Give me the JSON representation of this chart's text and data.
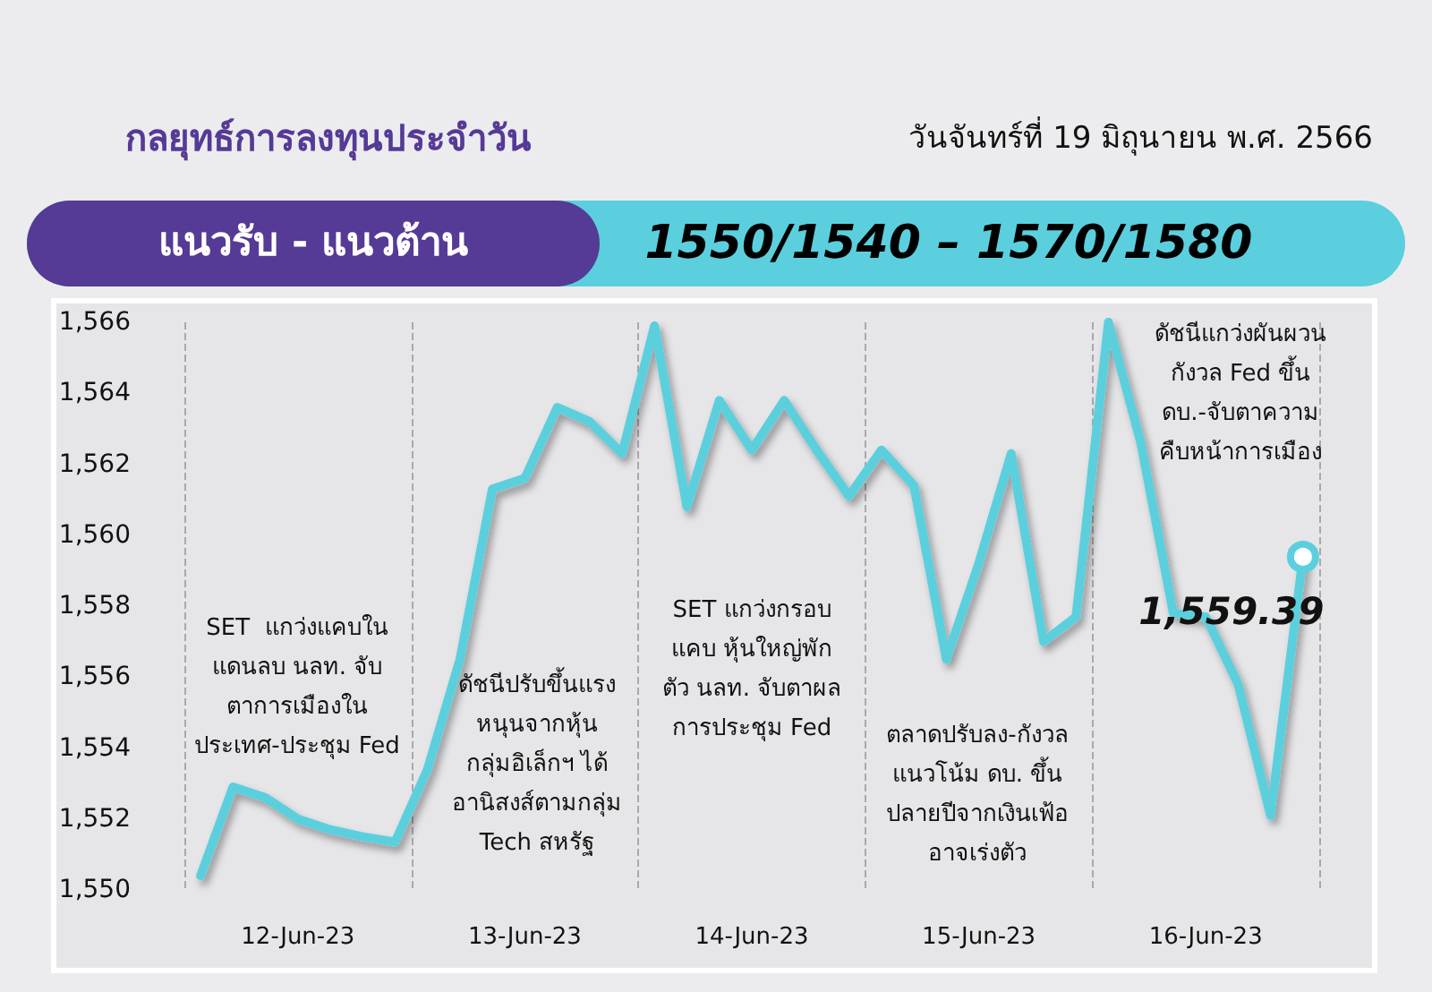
{
  "chart_data": {
    "type": "line",
    "title": "กลยุทธ์การลงทุนประจำวัน",
    "subtitle": "วันจันทร์ที่ 19 มิถุนายน พ.ศ. 2566",
    "categories": [
      null,
      null,
      null,
      "12-Jun-23",
      null,
      null,
      null,
      null,
      null,
      null,
      "13-Jun-23",
      null,
      null,
      null,
      null,
      null,
      null,
      "14-Jun-23",
      null,
      null,
      null,
      null,
      null,
      null,
      "15-Jun-23",
      null,
      null,
      null,
      null,
      null,
      null,
      "16-Jun-23",
      null,
      null,
      null
    ],
    "series": [
      {
        "color": "#5bcfdd",
        "values": [
          1550.4,
          1552.9,
          1552.6,
          1552.0,
          1551.7,
          1551.5,
          1551.35,
          1553.4,
          1556.5,
          1561.3,
          1561.6,
          1563.6,
          1563.2,
          1562.3,
          1565.9,
          1560.8,
          1563.8,
          1562.4,
          1563.8,
          1562.4,
          1561.1,
          1562.4,
          1561.4,
          1556.5,
          1559.2,
          1562.3,
          1557.0,
          1557.7,
          1566.0,
          1562.6,
          1557.8,
          1557.7,
          1555.8,
          1552.1,
          1559.39
        ],
        "value_labels": [
          null,
          null,
          null,
          null,
          null,
          null,
          null,
          null,
          null,
          null,
          null,
          null,
          null,
          null,
          null,
          null,
          null,
          null,
          null,
          null,
          null,
          null,
          null,
          null,
          null,
          null,
          null,
          null,
          null,
          null,
          null,
          null,
          null,
          null,
          "1,559.39"
        ]
      }
    ],
    "ylim": [
      1550,
      1566
    ],
    "yticks": [
      {
        "value": 1550,
        "label": "1,550"
      },
      {
        "value": 1552,
        "label": "1,552"
      },
      {
        "value": 1554,
        "label": "1,554"
      },
      {
        "value": 1556,
        "label": "1,556"
      },
      {
        "value": 1558,
        "label": "1,558"
      },
      {
        "value": 1560,
        "label": "1,560"
      },
      {
        "value": 1562,
        "label": "1,562"
      },
      {
        "value": 1564,
        "label": "1,564"
      },
      {
        "value": 1566,
        "label": "1,566"
      }
    ],
    "annotations": [
      "แนวรับ - แนวต้าน",
      "1550/1540 – 1570/1580",
      "SET  แกว่งแคบใน\nแดนลบ นลท. จับ\nตาการเมืองใน\nประเทศ-ประชุม Fed",
      "ดัชนีปรับขึ้นแรง\nหนุนจากหุ้น\nกลุ่มอิเล็กฯ ได้\nอานิสงส์ตามกลุ่ม\nTech สหรัฐ",
      "SET แกว่งกรอบ\nแคบ หุ้นใหญ่พัก\nตัว นลท. จับตาผล\nการประชุม Fed",
      "ตลาดปรับลง-กังวล\nแนวโน้ม ดบ. ขึ้น\nปลายปีจากเงินเฟ้อ\nอาจเร่งตัว",
      "ดัชนีแกว่งผันผวน\nกังวล Fed ขึ้น\nดบ.-จับตาความ\nคืบหน้าการเมือง"
    ],
    "grid": "x",
    "marker": "none",
    "line_style": "solid"
  }
}
